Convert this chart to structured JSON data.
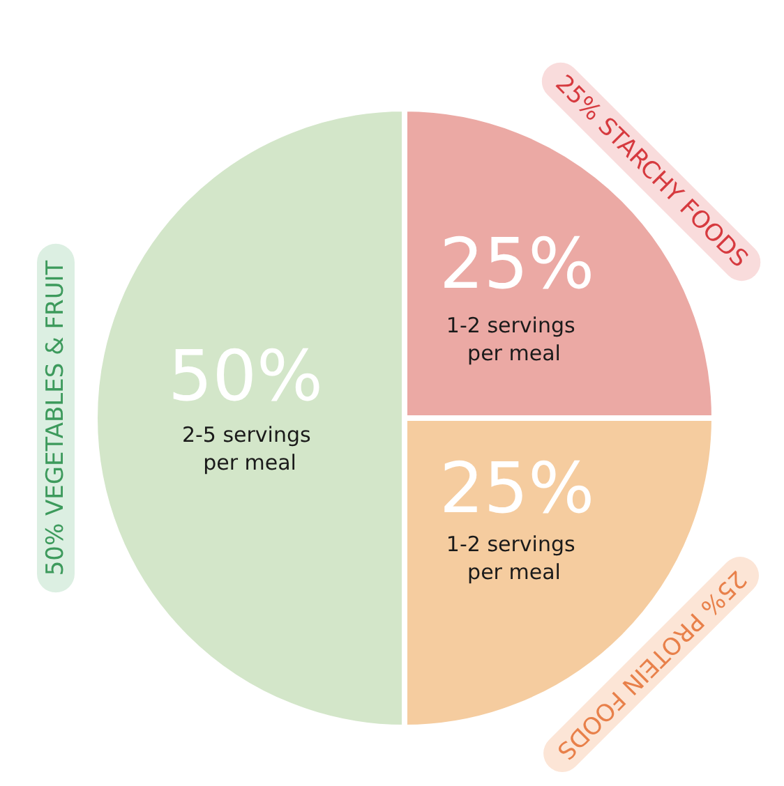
{
  "chart_data": {
    "type": "pie",
    "categories": [
      "25% STARCHY FOODS",
      "25% PROTEIN FOODS",
      "50% VEGETABLES & FRUIT"
    ],
    "values": [
      25,
      25,
      50
    ],
    "colors": [
      "#eba9a4",
      "#f5cc9f",
      "#d3e6c9"
    ],
    "value_labels": [
      "25%",
      "25%",
      "50%"
    ],
    "annotations": [
      "1-2 servings per meal",
      "1-2 servings per meal",
      "2-5 servings per meal"
    ]
  }
}
